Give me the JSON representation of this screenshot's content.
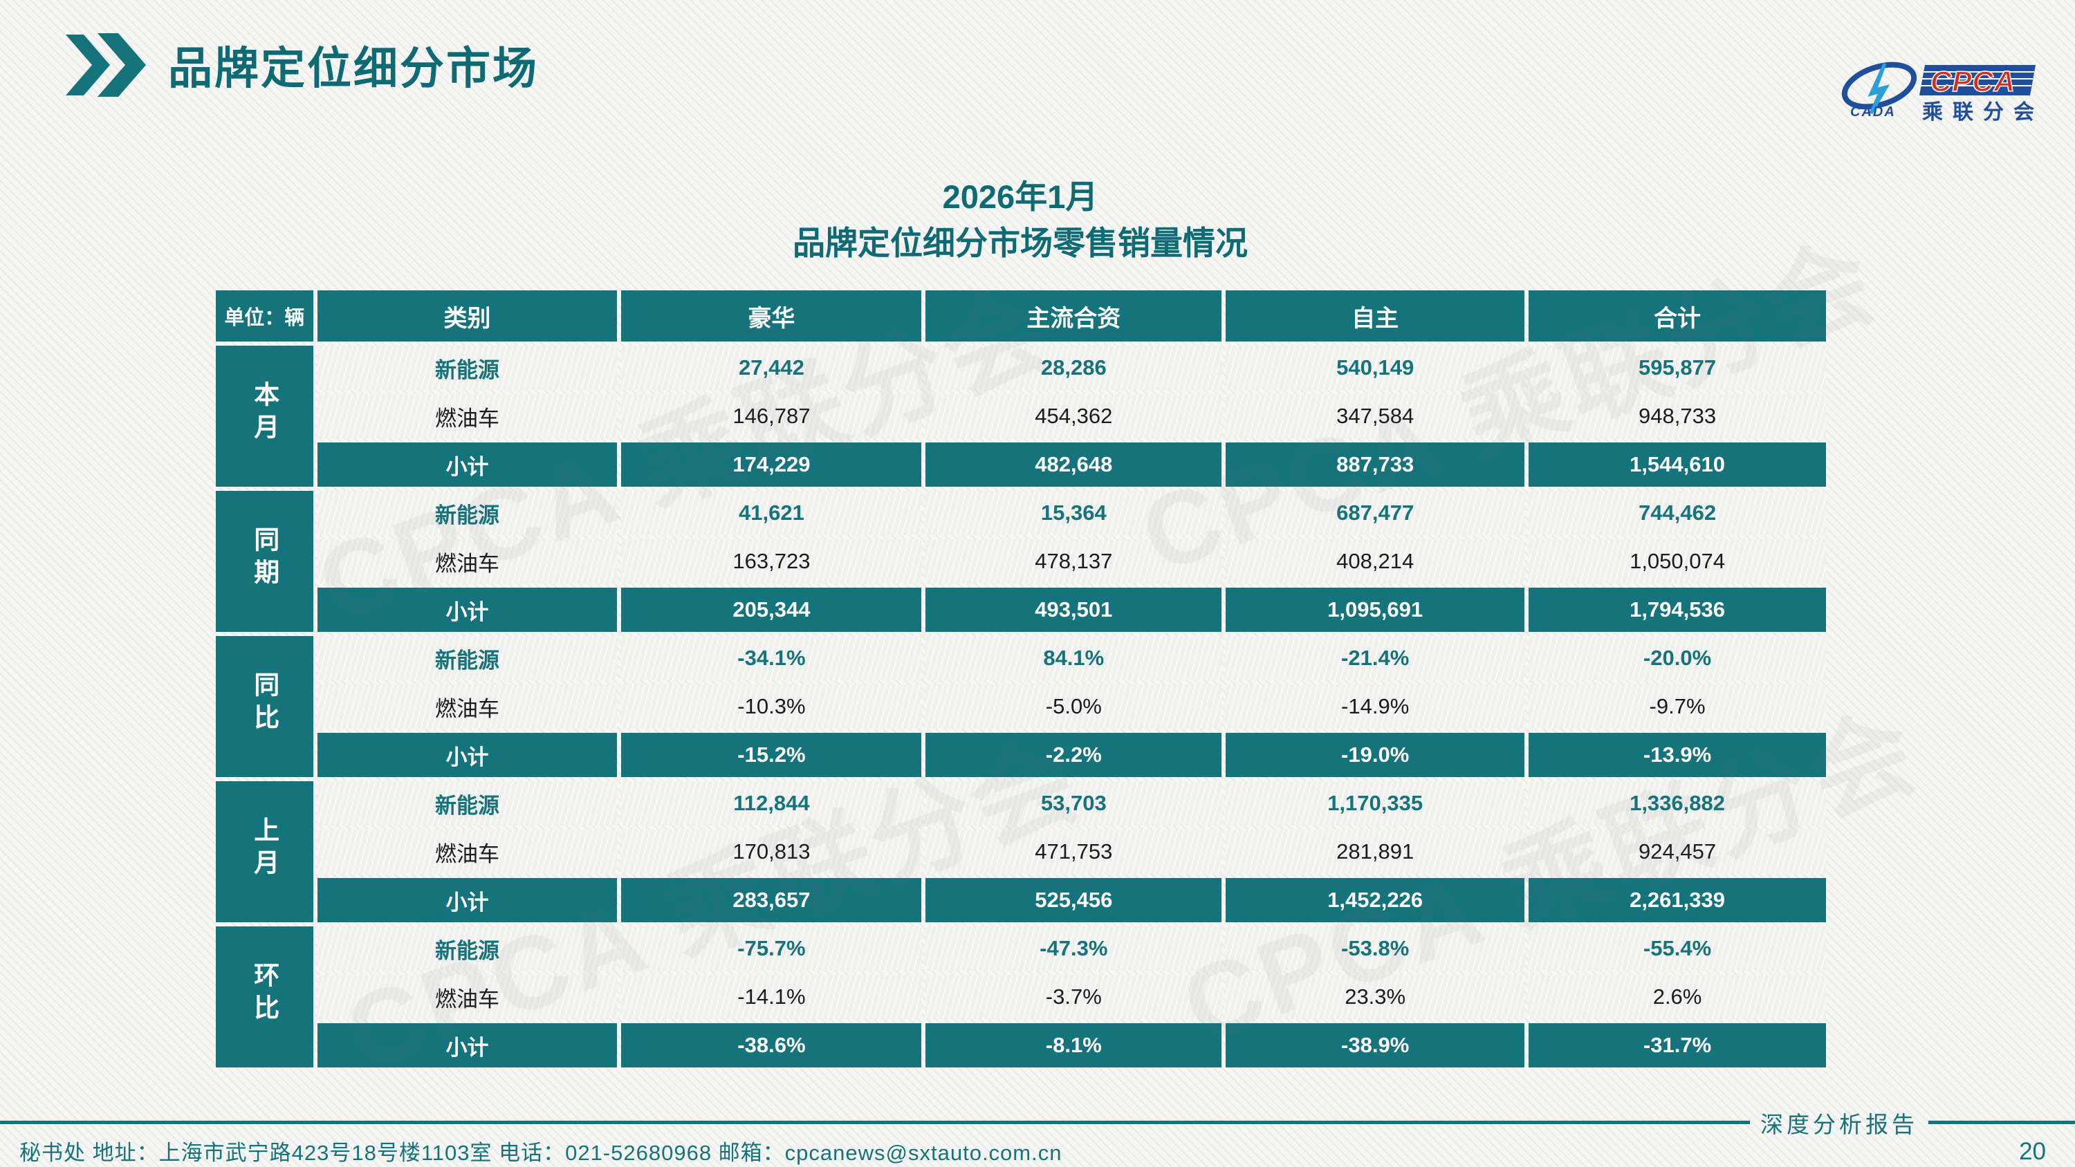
{
  "page": {
    "title": "品牌定位细分市场"
  },
  "logo": {
    "cada_label": "CADA",
    "cpca_label": "CPCA",
    "subtitle": "乘联分会",
    "watermark": "CPCA 乘联分会"
  },
  "table_title": {
    "line1": "2026年1月",
    "line2": "品牌定位细分市场零售销量情况"
  },
  "table": {
    "unit_label": "单位：辆",
    "columns": [
      "类别",
      "豪华",
      "主流合资",
      "自主",
      "合计"
    ],
    "groups": [
      {
        "name": "本月",
        "rows": [
          {
            "label": "新能源",
            "style": "ev",
            "values": [
              "27,442",
              "28,286",
              "540,149",
              "595,877"
            ]
          },
          {
            "label": "燃油车",
            "style": "fuel",
            "values": [
              "146,787",
              "454,362",
              "347,584",
              "948,733"
            ]
          },
          {
            "label": "小计",
            "style": "subtotal",
            "values": [
              "174,229",
              "482,648",
              "887,733",
              "1,544,610"
            ]
          }
        ]
      },
      {
        "name": "同期",
        "rows": [
          {
            "label": "新能源",
            "style": "ev",
            "values": [
              "41,621",
              "15,364",
              "687,477",
              "744,462"
            ]
          },
          {
            "label": "燃油车",
            "style": "fuel",
            "values": [
              "163,723",
              "478,137",
              "408,214",
              "1,050,074"
            ]
          },
          {
            "label": "小计",
            "style": "subtotal",
            "values": [
              "205,344",
              "493,501",
              "1,095,691",
              "1,794,536"
            ]
          }
        ]
      },
      {
        "name": "同比",
        "rows": [
          {
            "label": "新能源",
            "style": "ev",
            "values": [
              "-34.1%",
              "84.1%",
              "-21.4%",
              "-20.0%"
            ]
          },
          {
            "label": "燃油车",
            "style": "fuel",
            "values": [
              "-10.3%",
              "-5.0%",
              "-14.9%",
              "-9.7%"
            ]
          },
          {
            "label": "小计",
            "style": "subtotal",
            "values": [
              "-15.2%",
              "-2.2%",
              "-19.0%",
              "-13.9%"
            ]
          }
        ]
      },
      {
        "name": "上月",
        "rows": [
          {
            "label": "新能源",
            "style": "ev",
            "values": [
              "112,844",
              "53,703",
              "1,170,335",
              "1,336,882"
            ]
          },
          {
            "label": "燃油车",
            "style": "fuel",
            "values": [
              "170,813",
              "471,753",
              "281,891",
              "924,457"
            ]
          },
          {
            "label": "小计",
            "style": "subtotal",
            "values": [
              "283,657",
              "525,456",
              "1,452,226",
              "2,261,339"
            ]
          }
        ]
      },
      {
        "name": "环比",
        "rows": [
          {
            "label": "新能源",
            "style": "ev",
            "values": [
              "-75.7%",
              "-47.3%",
              "-53.8%",
              "-55.4%"
            ]
          },
          {
            "label": "燃油车",
            "style": "fuel",
            "values": [
              "-14.1%",
              "-3.7%",
              "23.3%",
              "2.6%"
            ]
          },
          {
            "label": "小计",
            "style": "subtotal",
            "values": [
              "-38.6%",
              "-8.1%",
              "-38.9%",
              "-31.7%"
            ]
          }
        ]
      }
    ]
  },
  "footer": {
    "left_text": "秘书处   地址：上海市武宁路423号18号楼1103室  电话：021-52680968   邮箱：cpcanews@sxtauto.com.cn",
    "report_label": "深度分析报告",
    "page_number": "20"
  },
  "colors": {
    "teal": "#15737b",
    "title_teal": "#0e6b73",
    "logo_blue": "#1f4e9c",
    "logo_light_blue": "#2b9fd8",
    "logo_red": "#d42b1e",
    "cell_light": "#efefed"
  }
}
